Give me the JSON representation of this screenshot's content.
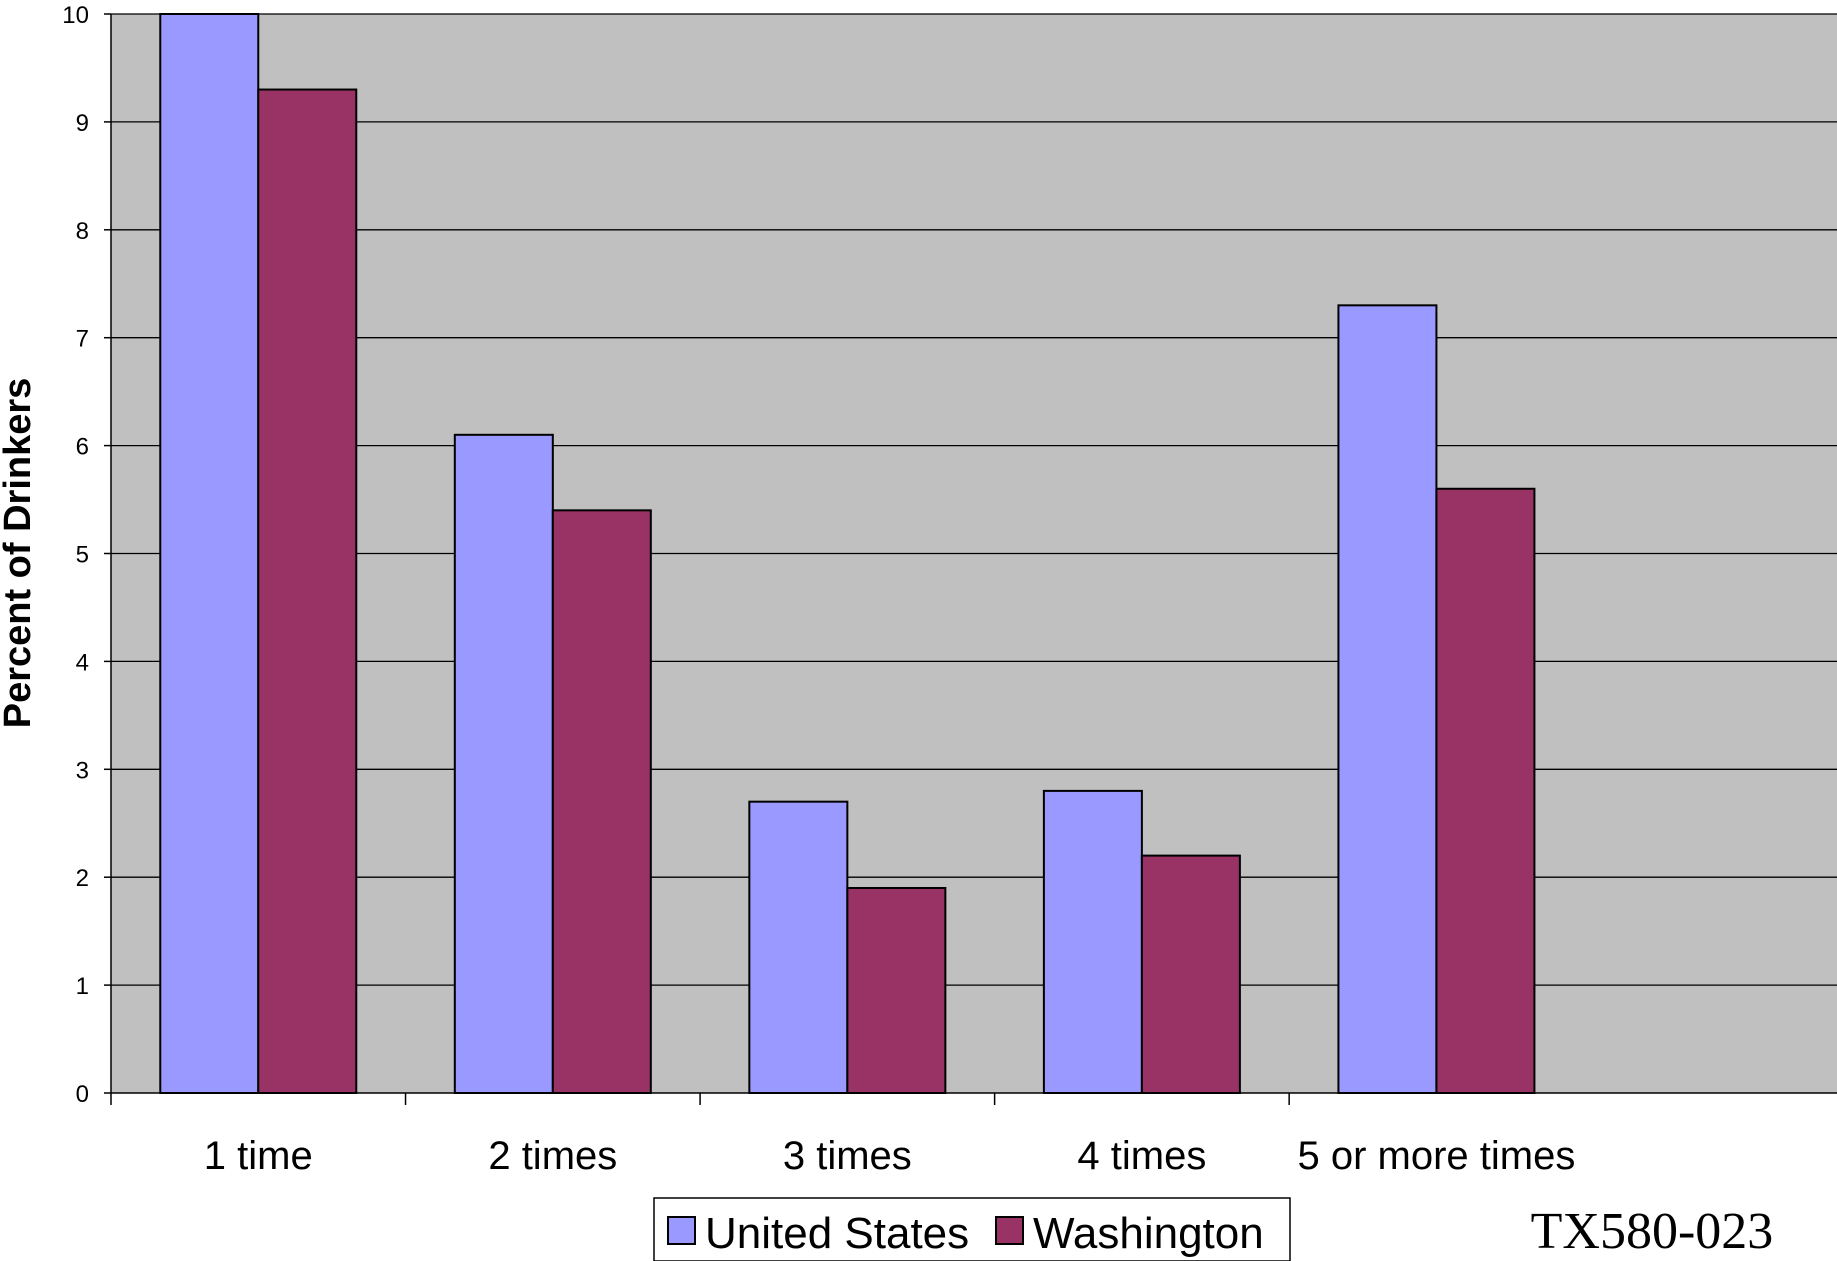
{
  "chart_data": {
    "type": "bar",
    "categories": [
      "1 time",
      "2 times",
      "3 times",
      "4 times",
      "5 or more times"
    ],
    "series": [
      {
        "name": "United States",
        "values": [
          10,
          6.1,
          2.7,
          2.8,
          7.3
        ],
        "color": "#9999ff"
      },
      {
        "name": "Washington",
        "values": [
          9.3,
          5.4,
          1.9,
          2.2,
          5.6
        ],
        "color": "#993366"
      }
    ],
    "ylabel": "Percent of Drinkers",
    "xlabel": "",
    "ylim": [
      0,
      10
    ],
    "yticks": [
      "0",
      "1",
      "2",
      "3",
      "4",
      "5",
      "6",
      "7",
      "8",
      "9",
      "10"
    ],
    "grid": true,
    "plot_background": "#c0c0c0",
    "legend_position": "bottom-center"
  },
  "document_code": "TX580-023"
}
